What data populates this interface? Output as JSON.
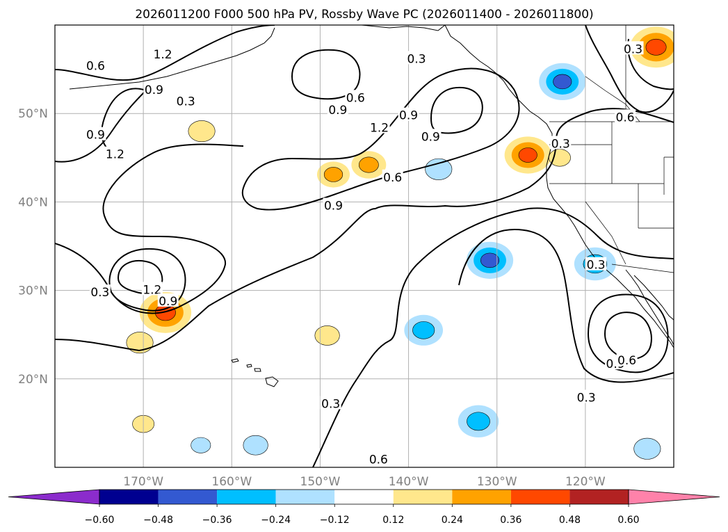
{
  "chart_data": {
    "type": "contour-map",
    "title": "2026011200 F000 500 hPa PV, Rossby Wave PC (2026011400 - 2026011800)",
    "projection": "PlateCarree",
    "lon_range": [
      -180,
      -110
    ],
    "lat_range": [
      10,
      60
    ],
    "lon_ticks": [
      {
        "value": -170,
        "label": "170°W"
      },
      {
        "value": -160,
        "label": "160°W"
      },
      {
        "value": -150,
        "label": "150°W"
      },
      {
        "value": -140,
        "label": "140°W"
      },
      {
        "value": -130,
        "label": "130°W"
      },
      {
        "value": -120,
        "label": "120°W"
      }
    ],
    "lat_ticks": [
      {
        "value": 20,
        "label": "20°N"
      },
      {
        "value": 30,
        "label": "30°N"
      },
      {
        "value": 40,
        "label": "40°N"
      },
      {
        "value": 50,
        "label": "50°N"
      }
    ],
    "grid": true,
    "contour_labels": [
      {
        "lon": -167.8,
        "lat": 56.7,
        "text": "1.2"
      },
      {
        "lon": -148,
        "lat": 50.4,
        "text": "0.9"
      },
      {
        "lon": -146,
        "lat": 51.8,
        "text": "0.6"
      },
      {
        "lon": -139.1,
        "lat": 56.2,
        "text": "0.3"
      },
      {
        "lon": -137.5,
        "lat": 47.4,
        "text": "0.9"
      },
      {
        "lon": -140,
        "lat": 49.8,
        "text": "0.9"
      },
      {
        "lon": -143.3,
        "lat": 48.4,
        "text": "1.2"
      },
      {
        "lon": -141.8,
        "lat": 42.8,
        "text": "0.6"
      },
      {
        "lon": -148.5,
        "lat": 39.6,
        "text": "0.9"
      },
      {
        "lon": -165.2,
        "lat": 51.4,
        "text": "0.3"
      },
      {
        "lon": -175.4,
        "lat": 47.6,
        "text": "0.9"
      },
      {
        "lon": -173.2,
        "lat": 45.4,
        "text": "1.2"
      },
      {
        "lon": -168.8,
        "lat": 52.7,
        "text": "0.9"
      },
      {
        "lon": -175.4,
        "lat": 55.4,
        "text": "0.6"
      },
      {
        "lon": -174.9,
        "lat": 29.8,
        "text": "0.3"
      },
      {
        "lon": -169,
        "lat": 30.1,
        "text": "1.2"
      },
      {
        "lon": -167.2,
        "lat": 28.8,
        "text": "0.9"
      },
      {
        "lon": -148.8,
        "lat": 17.2,
        "text": "0.3"
      },
      {
        "lon": -143.4,
        "lat": 10.9,
        "text": "0.6"
      },
      {
        "lon": -118.8,
        "lat": 32.9,
        "text": "0.3"
      },
      {
        "lon": -119.9,
        "lat": 17.9,
        "text": "0.3"
      },
      {
        "lon": -116.6,
        "lat": 21.7,
        "text": "0.9"
      },
      {
        "lon": -115.3,
        "lat": 22.1,
        "text": "0.6"
      },
      {
        "lon": -122.8,
        "lat": 46.6,
        "text": "0.3"
      },
      {
        "lon": -115.5,
        "lat": 49.6,
        "text": "0.6"
      },
      {
        "lon": -114.6,
        "lat": 57.3,
        "text": "0.3"
      }
    ],
    "shaded_anomalies": [
      {
        "lon": -167.5,
        "lat": 27.5,
        "value": 0.45
      },
      {
        "lon": -126.5,
        "lat": 45.3,
        "value": 0.4
      },
      {
        "lon": -112,
        "lat": 57.5,
        "value": 0.45
      },
      {
        "lon": -144.5,
        "lat": 44.2,
        "value": 0.28
      },
      {
        "lon": -148.5,
        "lat": 43.1,
        "value": 0.26
      },
      {
        "lon": -163.4,
        "lat": 48.0,
        "value": 0.2
      },
      {
        "lon": -170.4,
        "lat": 24.1,
        "value": 0.2
      },
      {
        "lon": -122.6,
        "lat": 53.6,
        "value": -0.4
      },
      {
        "lon": -130.8,
        "lat": 33.4,
        "value": -0.4
      },
      {
        "lon": -118.9,
        "lat": 33.0,
        "value": -0.35
      },
      {
        "lon": -138.3,
        "lat": 25.5,
        "value": -0.32
      },
      {
        "lon": -132.1,
        "lat": 15.2,
        "value": -0.34
      },
      {
        "lon": -136.6,
        "lat": 43.7,
        "value": -0.2
      },
      {
        "lon": -113.0,
        "lat": 12.1,
        "value": -0.2
      },
      {
        "lon": -163.5,
        "lat": 12.5,
        "value": -0.13
      },
      {
        "lon": -149.2,
        "lat": 24.9,
        "value": 0.18
      },
      {
        "lon": -170.0,
        "lat": 14.9,
        "value": 0.15
      },
      {
        "lon": -122.9,
        "lat": 45.0,
        "value": 0.15
      },
      {
        "lon": -157.3,
        "lat": 12.5,
        "value": -0.18
      }
    ],
    "colorbar": {
      "levels": [
        -0.6,
        -0.48,
        -0.36,
        -0.24,
        -0.12,
        0.12,
        0.24,
        0.36,
        0.48,
        0.6
      ],
      "tick_labels": [
        "−0.60",
        "−0.48",
        "−0.36",
        "−0.24",
        "−0.12",
        "0.12",
        "0.24",
        "0.36",
        "0.48",
        "0.60"
      ],
      "colors": [
        "#8b2ccc",
        "#000090",
        "#3359d1",
        "#00bfff",
        "#afe1ff",
        "#ffffff",
        "#ffe78c",
        "#ffa200",
        "#ff4800",
        "#b22222",
        "#ff82aa"
      ],
      "extend": "both"
    }
  }
}
